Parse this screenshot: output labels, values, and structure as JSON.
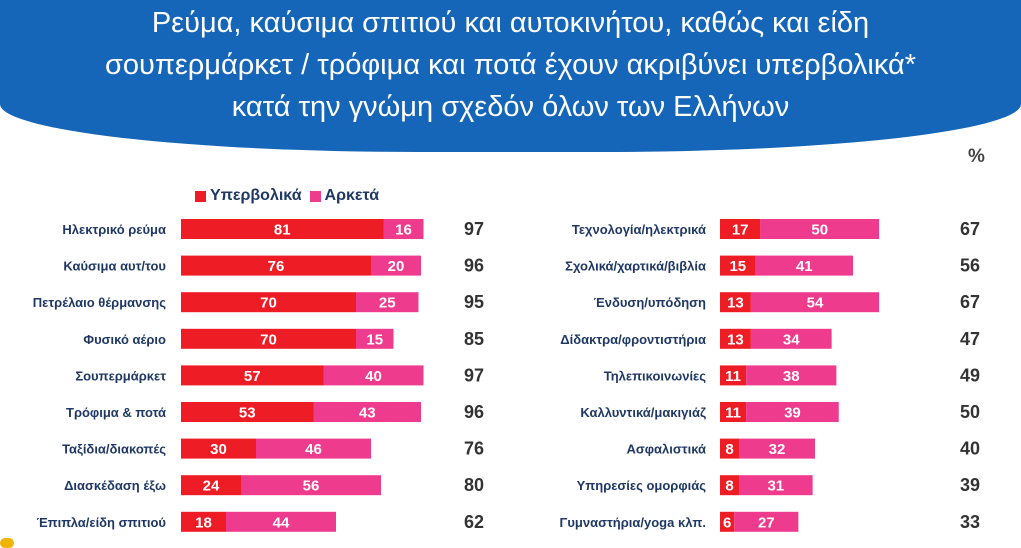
{
  "title_lines": [
    "Ρεύμα, καύσιμα σπιτιού και αυτοκινήτου, καθώς και είδη",
    "σουπερμάρκετ / τρόφιμα και ποτά έχουν ακριβύνει υπερβολικά*",
    "κατά την γνώμη σχεδόν όλων των Ελλήνων"
  ],
  "unit": "%",
  "legend": [
    {
      "name": "Υπερβολικά",
      "color": "#ee1c25"
    },
    {
      "name": "Αρκετά",
      "color": "#ef3b8d"
    }
  ],
  "chart_data": [
    {
      "type": "bar",
      "orientation": "horizontal",
      "stacked": true,
      "categories": [
        "Ηλεκτρικό ρεύμα",
        "Καύσιμα αυτ/του",
        "Πετρέλαιο θέρμανσης",
        "Φυσικό αέριο",
        "Σουπερμάρκετ",
        "Τρόφιμα & ποτά",
        "Ταξίδια/διακοπές",
        "Διασκέδαση έξω",
        "Έπιπλα/είδη σπιτιού"
      ],
      "series": [
        {
          "name": "Υπερβολικά",
          "color": "#ee1c25",
          "values": [
            81,
            76,
            70,
            70,
            57,
            53,
            30,
            24,
            18
          ]
        },
        {
          "name": "Αρκετά",
          "color": "#ef3b8d",
          "values": [
            16,
            20,
            25,
            15,
            40,
            43,
            46,
            56,
            44
          ]
        }
      ],
      "totals": [
        "97",
        "96",
        "95",
        "85",
        "97",
        "96",
        "76",
        "80",
        "62"
      ]
    },
    {
      "type": "bar",
      "orientation": "horizontal",
      "stacked": true,
      "categories": [
        "Τεχνολογία/ηλεκτρικά",
        "Σχολικά/χαρτικά/βιβλία",
        "Ένδυση/υπόδηση",
        "Δίδακτρα/φροντιστήρια",
        "Τηλεπικοινωνίες",
        "Καλλυντικά/μακιγιάζ",
        "Ασφαλιστικά",
        "Υπηρεσίες ομορφιάς",
        "Γυμναστήρια/yoga κλπ."
      ],
      "series": [
        {
          "name": "Υπερβολικά",
          "color": "#ee1c25",
          "values": [
            17,
            15,
            13,
            13,
            11,
            11,
            8,
            8,
            6
          ]
        },
        {
          "name": "Αρκετά",
          "color": "#ef3b8d",
          "values": [
            50,
            41,
            54,
            34,
            38,
            39,
            32,
            31,
            27
          ]
        }
      ],
      "totals": [
        "67",
        "56",
        "67",
        "47",
        "49",
        "50",
        "40",
        "39",
        "33"
      ]
    }
  ]
}
